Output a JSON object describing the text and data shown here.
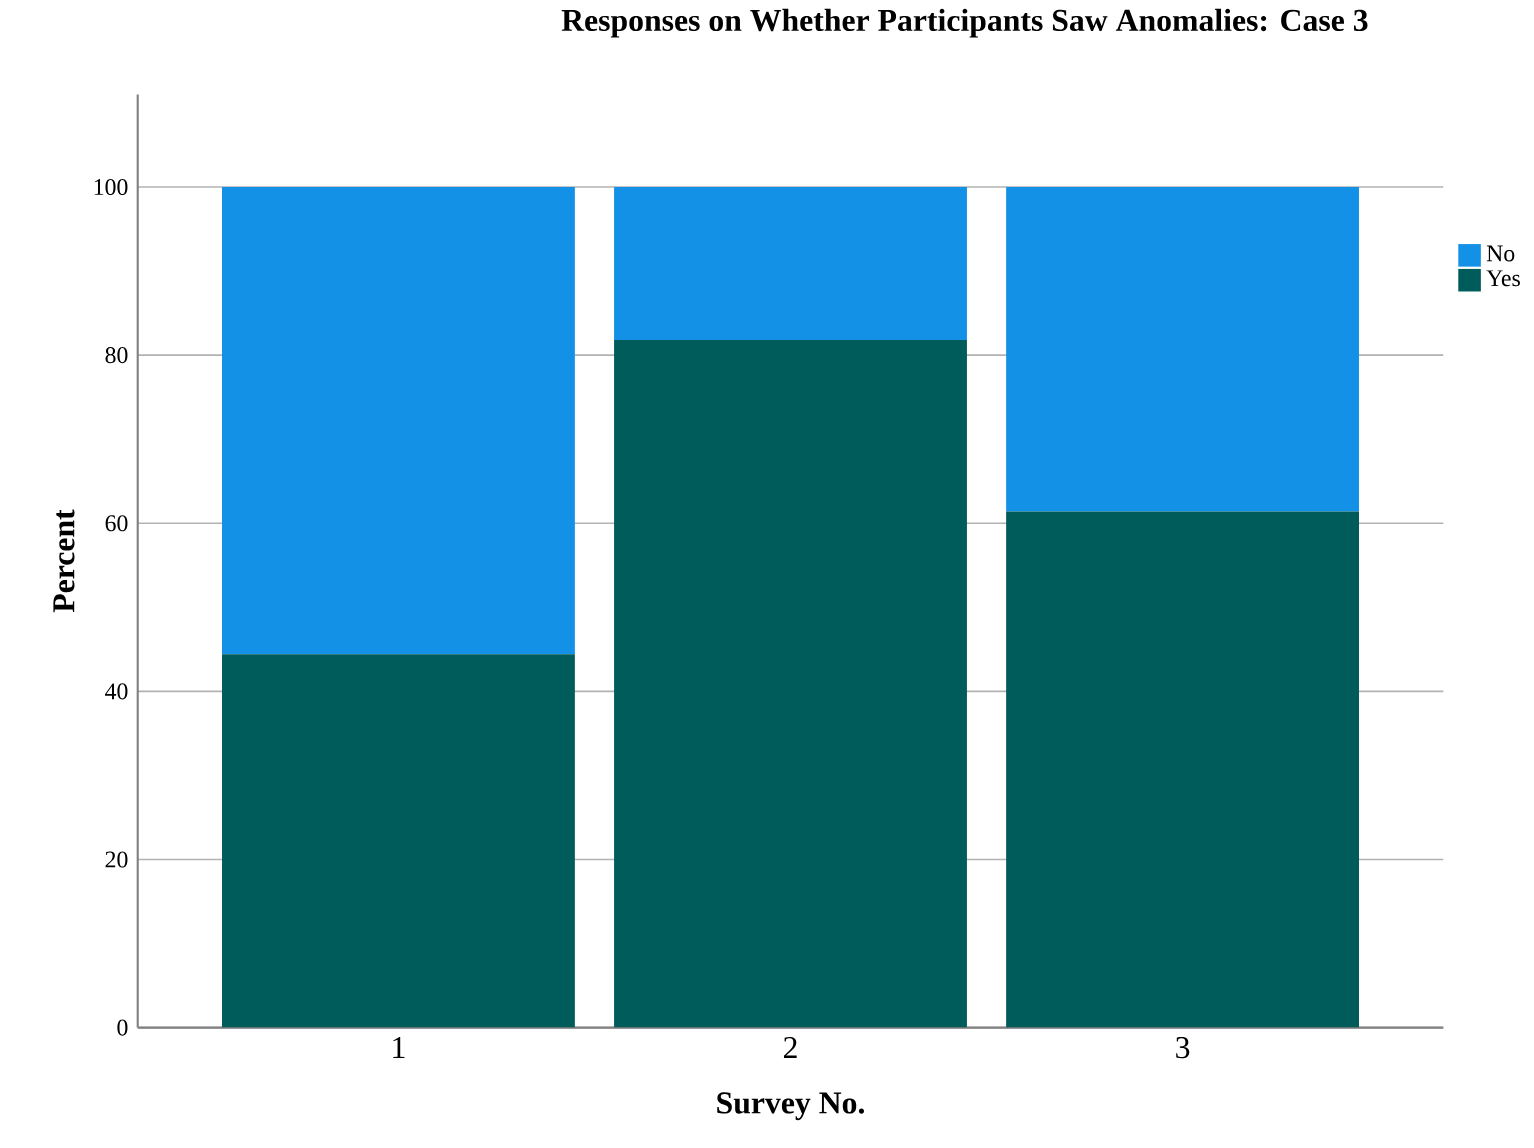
{
  "chart_data": {
    "type": "bar",
    "title": "Responses on Whether Participants Saw Anomalies: Case 3",
    "xlabel": "Survey No.",
    "ylabel": "Percent",
    "categories": [
      "1",
      "2",
      "3"
    ],
    "stacked": true,
    "series": [
      {
        "name": "Yes",
        "color": "#005c5a",
        "values": [
          44.4,
          81.8,
          61.4
        ]
      },
      {
        "name": "No",
        "color": "#1391e6",
        "values": [
          55.6,
          18.2,
          38.6
        ]
      }
    ],
    "ylim": [
      0,
      111
    ],
    "yticks": [
      0,
      20,
      40,
      60,
      80,
      100
    ],
    "grid": "y",
    "legend": "top right"
  }
}
